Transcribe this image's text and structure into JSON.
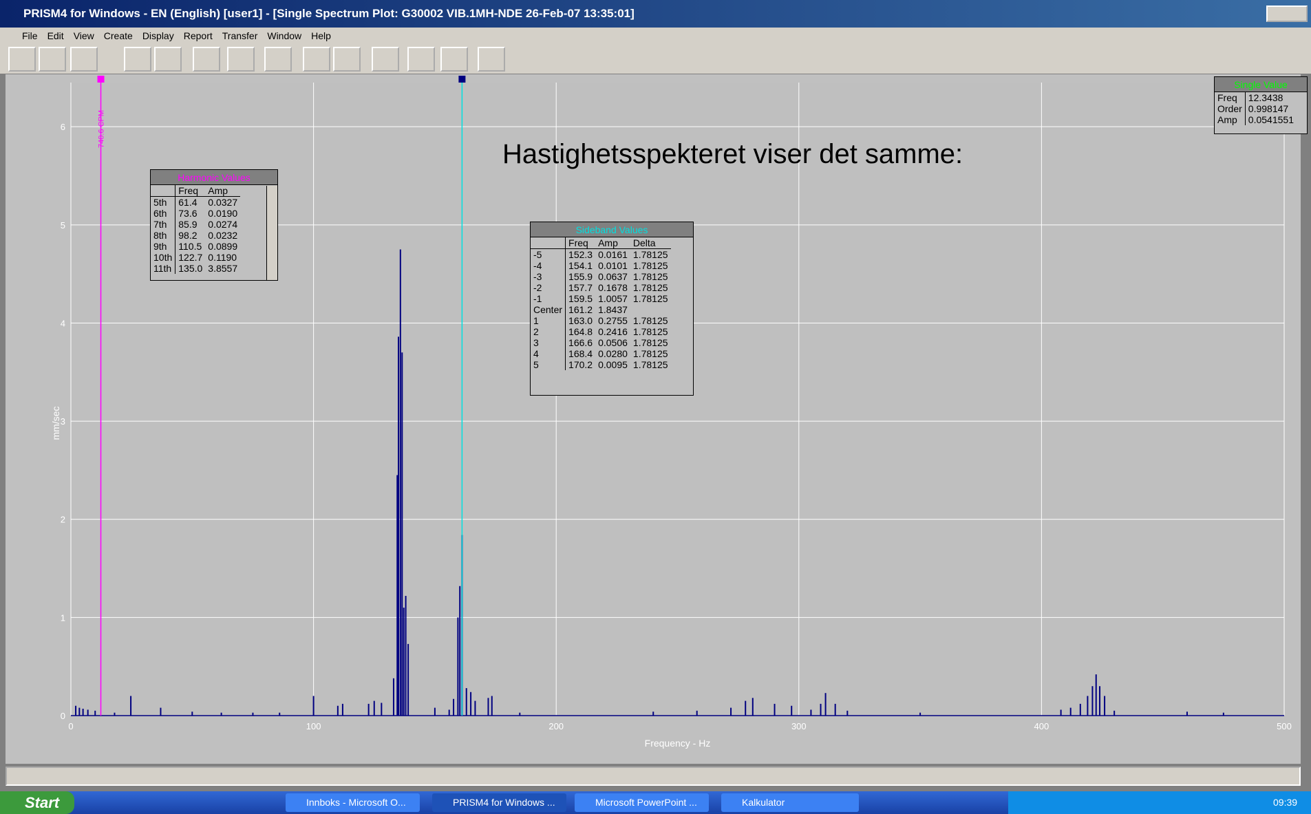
{
  "window": {
    "title": "PRISM4 for Windows - EN (English) [user1] - [Single Spectrum Plot: G30002  VIB.1MH-NDE 26-Feb-07 13:35:01]",
    "menu": [
      "File",
      "Edit",
      "View",
      "Create",
      "Display",
      "Report",
      "Transfer",
      "Window",
      "Help"
    ]
  },
  "chart_data": {
    "type": "stem",
    "x_label": "Frequency - Hz",
    "y_label": "mm/sec",
    "annotation": "Hastighetsspekteret viser det samme:",
    "xlim": [
      0,
      500
    ],
    "ylim": [
      0,
      6.45
    ],
    "xticks": [
      0,
      100,
      200,
      300,
      400,
      500
    ],
    "yticks": [
      0,
      1,
      2,
      3,
      4,
      5,
      6
    ],
    "grid": true,
    "color": "#000080",
    "x": [
      2,
      3.5,
      5,
      7,
      10,
      18,
      24.7,
      37,
      50,
      62,
      75,
      86,
      100,
      110,
      112,
      122.7,
      125,
      128,
      133,
      134.5,
      135.0,
      135.8,
      136.5,
      137.2,
      138.0,
      139.0,
      150,
      155.9,
      157.7,
      159.5,
      160.3,
      161.2,
      163.0,
      164.8,
      166.6,
      172,
      173.5,
      185,
      240,
      258,
      272,
      278,
      281,
      290,
      297,
      305,
      309,
      311,
      315,
      320,
      350,
      408,
      412,
      416,
      419,
      421,
      422.5,
      424,
      426,
      430,
      460,
      475
    ],
    "values": [
      0.1,
      0.08,
      0.07,
      0.06,
      0.05,
      0.03,
      0.2,
      0.08,
      0.04,
      0.03,
      0.03,
      0.03,
      0.2,
      0.1,
      0.12,
      0.12,
      0.15,
      0.13,
      0.38,
      2.45,
      3.86,
      4.75,
      3.7,
      1.1,
      1.22,
      0.73,
      0.08,
      0.06,
      0.17,
      1.0,
      1.32,
      1.84,
      0.28,
      0.24,
      0.15,
      0.18,
      0.2,
      0.03,
      0.04,
      0.05,
      0.08,
      0.15,
      0.18,
      0.12,
      0.1,
      0.06,
      0.12,
      0.23,
      0.12,
      0.05,
      0.03,
      0.06,
      0.08,
      0.12,
      0.2,
      0.3,
      0.42,
      0.3,
      0.2,
      0.05,
      0.04,
      0.03
    ],
    "cursors": [
      {
        "x": 12.3438,
        "color": "#ff00ff",
        "label": "740.6 CPM"
      },
      {
        "x": 161.2,
        "color": "#00e0e0"
      }
    ]
  },
  "harmonic_table": {
    "title": "Harmonic Values",
    "columns": [
      "Freq",
      "Amp"
    ],
    "rows": [
      [
        "5th",
        "61.4",
        "0.0327"
      ],
      [
        "6th",
        "73.6",
        "0.0190"
      ],
      [
        "7th",
        "85.9",
        "0.0274"
      ],
      [
        "8th",
        "98.2",
        "0.0232"
      ],
      [
        "9th",
        "110.5",
        "0.0899"
      ],
      [
        "10th",
        "122.7",
        "0.1190"
      ],
      [
        "11th",
        "135.0",
        "3.8557"
      ]
    ]
  },
  "sideband_table": {
    "title": "Sideband Values",
    "columns": [
      "Freq",
      "Amp",
      "Delta"
    ],
    "rows": [
      [
        "-5",
        "152.3",
        "0.0161",
        "1.78125"
      ],
      [
        "-4",
        "154.1",
        "0.0101",
        "1.78125"
      ],
      [
        "-3",
        "155.9",
        "0.0637",
        "1.78125"
      ],
      [
        "-2",
        "157.7",
        "0.1678",
        "1.78125"
      ],
      [
        "-1",
        "159.5",
        "1.0057",
        "1.78125"
      ],
      [
        "Center",
        "161.2",
        "1.8437"
      ],
      [
        "1",
        "163.0",
        "0.2755",
        "1.78125"
      ],
      [
        "2",
        "164.8",
        "0.2416",
        "1.78125"
      ],
      [
        "3",
        "166.6",
        "0.0506",
        "1.78125"
      ],
      [
        "4",
        "168.4",
        "0.0280",
        "1.78125"
      ],
      [
        "5",
        "170.2",
        "0.0095",
        "1.78125"
      ]
    ]
  },
  "single_value": {
    "title": "Single Value",
    "rows": [
      [
        "Freq",
        "12.3438"
      ],
      [
        "Order",
        "0.998147"
      ],
      [
        "Amp",
        "0.0541551"
      ]
    ]
  },
  "taskbar": {
    "start": "Start",
    "tasks": [
      "Innboks - Microsoft O...",
      "PRISM4 for Windows ...",
      "Microsoft PowerPoint ...",
      "Kalkulator"
    ],
    "clock": "09:39"
  }
}
